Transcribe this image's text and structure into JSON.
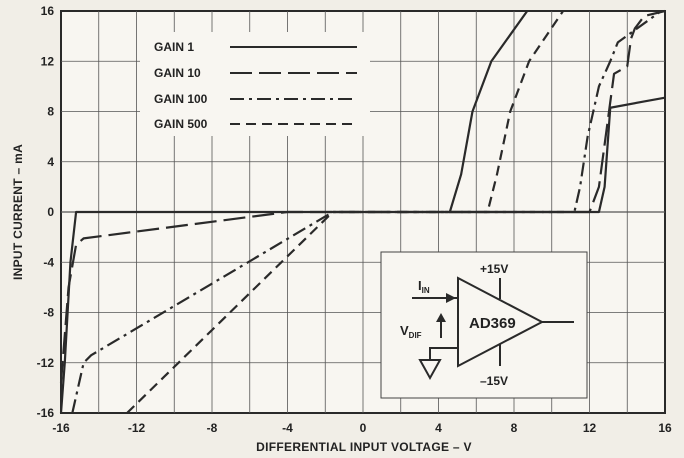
{
  "chart_data": {
    "type": "line",
    "title": "",
    "xlabel": "DIFFERENTIAL INPUT VOLTAGE – V",
    "ylabel": "INPUT CURRENT – mA",
    "xlim": [
      -16,
      16
    ],
    "ylim": [
      -16,
      16
    ],
    "x_ticks": [
      "-16",
      "-12",
      "-8",
      "-4",
      "0",
      "4",
      "8",
      "12",
      "16"
    ],
    "x_tick_values": [
      -16,
      -12,
      -8,
      -4,
      0,
      4,
      8,
      12,
      16
    ],
    "y_ticks": [
      "16",
      "12",
      "8",
      "4",
      "0",
      "-4",
      "-8",
      "-12",
      "-16"
    ],
    "y_tick_values": [
      16,
      12,
      8,
      4,
      0,
      -4,
      -8,
      -12,
      -16
    ],
    "grid": true,
    "legend_position": "top-left",
    "series": [
      {
        "name": "GAIN 1",
        "dash": "solid",
        "points": [
          [
            -16,
            -16
          ],
          [
            -15.8,
            -12
          ],
          [
            -15.5,
            -4
          ],
          [
            -15.2,
            0
          ],
          [
            12.5,
            0
          ],
          [
            12.8,
            2
          ],
          [
            13.1,
            8.3
          ],
          [
            14.9,
            8.8
          ],
          [
            16,
            9.1
          ]
        ]
      },
      {
        "name": "GAIN 10",
        "dash": "longdash",
        "points": [
          [
            -16,
            -13.6
          ],
          [
            -15.6,
            -6
          ],
          [
            -15.2,
            -2.6
          ],
          [
            -14.8,
            -2.1
          ],
          [
            -4,
            0
          ],
          [
            12,
            0
          ],
          [
            12.5,
            2
          ],
          [
            13.3,
            11
          ],
          [
            14,
            11.6
          ],
          [
            14.2,
            13.8
          ],
          [
            14.4,
            14.6
          ],
          [
            14.9,
            15.6
          ],
          [
            16,
            16
          ]
        ]
      },
      {
        "name": "GAIN 100",
        "dash": "dashdot",
        "points": [
          [
            -15.4,
            -16
          ],
          [
            -14.8,
            -12
          ],
          [
            -14.4,
            -11.4
          ],
          [
            -1.6,
            0
          ],
          [
            11.2,
            0
          ],
          [
            11.5,
            2
          ],
          [
            11.9,
            6
          ],
          [
            12.5,
            10
          ],
          [
            13.1,
            12
          ],
          [
            13.5,
            13.5
          ],
          [
            15.8,
            16
          ]
        ]
      },
      {
        "name": "GAIN 500",
        "dash": "dashed",
        "points": [
          [
            -12.5,
            -16
          ],
          [
            -1.6,
            0
          ],
          [
            6.6,
            0
          ],
          [
            7.1,
            3
          ],
          [
            7.8,
            8
          ],
          [
            8.8,
            12
          ],
          [
            10.6,
            16
          ]
        ]
      },
      {
        "name": "",
        "dash": "solid",
        "points": [
          [
            4.6,
            0
          ],
          [
            5.2,
            3
          ],
          [
            5.8,
            8
          ],
          [
            6.8,
            12
          ],
          [
            8.7,
            16
          ]
        ]
      }
    ]
  },
  "legend": {
    "items": [
      {
        "label": "GAIN 1",
        "dash": "solid"
      },
      {
        "label": "GAIN 10",
        "dash": "longdash"
      },
      {
        "label": "GAIN 100",
        "dash": "dashdot"
      },
      {
        "label": "GAIN 500",
        "dash": "dashed"
      }
    ]
  },
  "inset": {
    "label_iin": "I",
    "label_iin_sub": "IN",
    "label_vdif": "V",
    "label_vdif_sub": "DIF",
    "label_vplus": "+15V",
    "label_vminus": "–15V",
    "label_part": "AD369"
  },
  "colors": {
    "background": "#f1eee7",
    "plot_background": "#f8f6f1",
    "line": "#2a2a2a",
    "grid": "#555555"
  }
}
